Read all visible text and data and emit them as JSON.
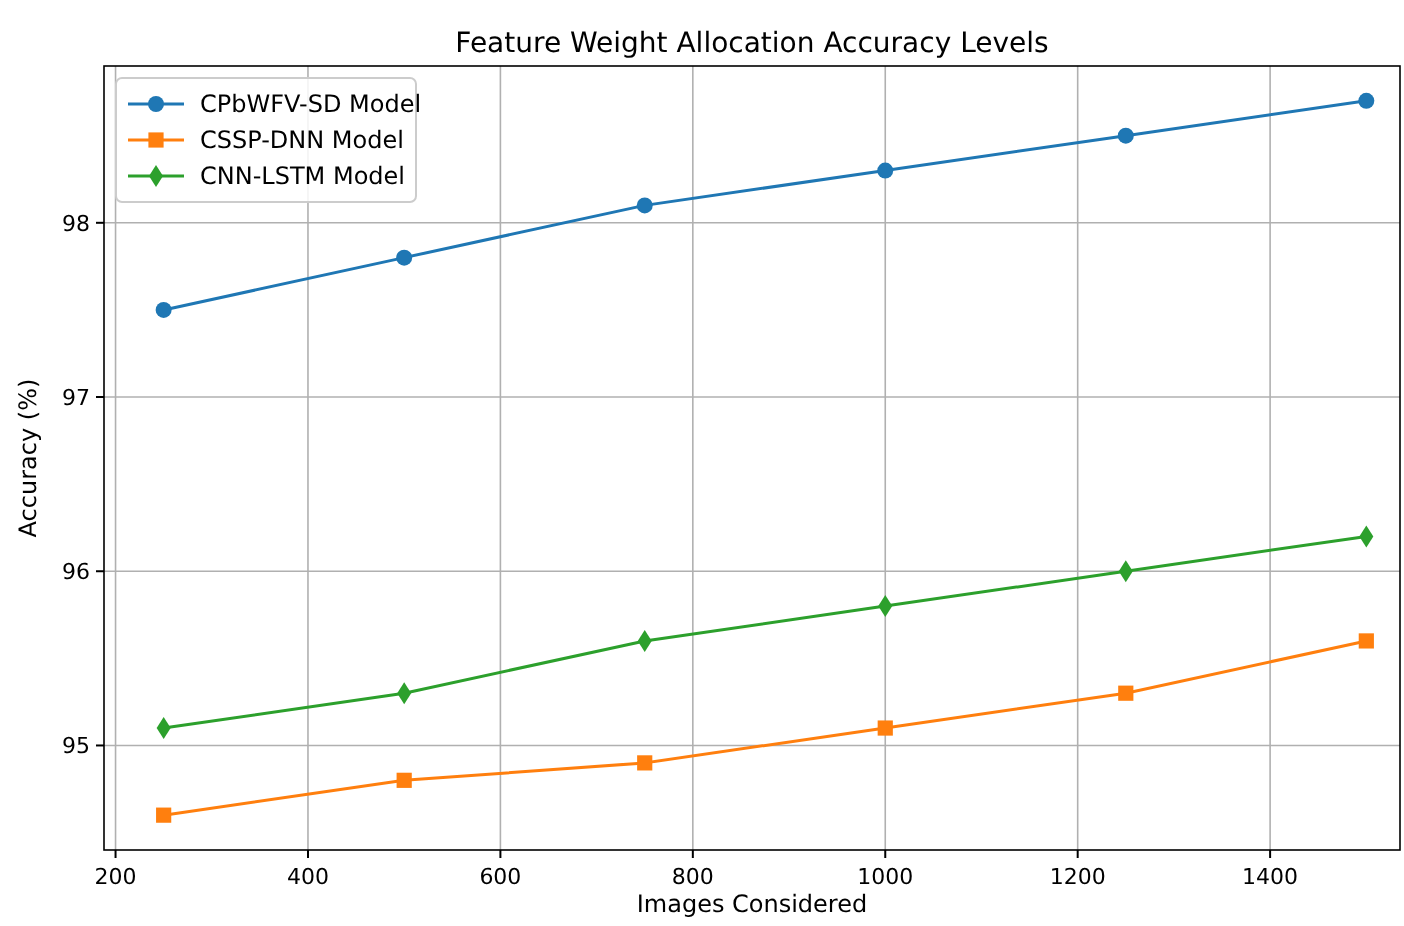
{
  "chart_data": {
    "type": "line",
    "title": "Feature Weight Allocation Accuracy Levels",
    "xlabel": "Images Considered",
    "ylabel": "Accuracy (%)",
    "x": [
      250,
      500,
      750,
      1000,
      1250,
      1500
    ],
    "series": [
      {
        "name": "CPbWFV-SD Model",
        "color": "#1f77b4",
        "marker": "circle",
        "values": [
          97.5,
          97.8,
          98.1,
          98.3,
          98.5,
          98.7
        ]
      },
      {
        "name": "CSSP-DNN Model",
        "color": "#ff7f0e",
        "marker": "square",
        "values": [
          94.6,
          94.8,
          94.9,
          95.1,
          95.3,
          95.6
        ]
      },
      {
        "name": "CNN-LSTM Model",
        "color": "#2ca02c",
        "marker": "diamond",
        "values": [
          95.1,
          95.3,
          95.6,
          95.8,
          96.0,
          96.2
        ]
      }
    ],
    "xlim": [
      188,
      1535
    ],
    "ylim": [
      94.4,
      98.9
    ],
    "xticks": [
      200,
      400,
      600,
      800,
      1000,
      1200,
      1400
    ],
    "yticks": [
      95,
      96,
      97,
      98
    ],
    "grid": true,
    "legend": "top left",
    "line_style": "solid"
  }
}
